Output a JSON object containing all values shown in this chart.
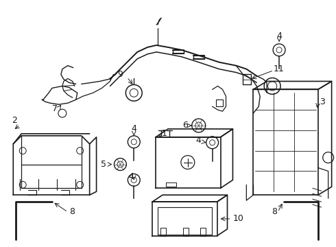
{
  "bg_color": "#ffffff",
  "line_color": "#1a1a1a",
  "fig_width": 4.9,
  "fig_height": 3.6,
  "dpi": 100,
  "parts": {
    "label_fontsize": 9,
    "bolt_r": 0.013,
    "bolt_shaft": 0.028
  }
}
